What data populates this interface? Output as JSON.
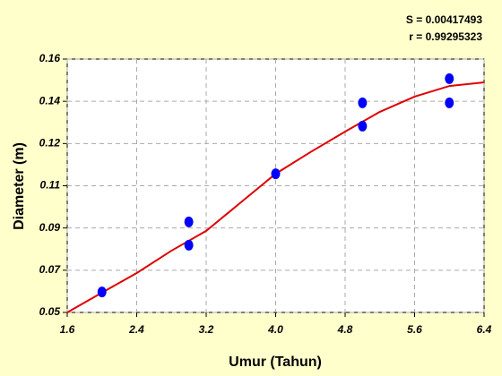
{
  "chart_data": {
    "type": "scatter",
    "stats": [
      "S = 0.00417493",
      "r = 0.99295323"
    ],
    "x_label": "Umur (Tahun)",
    "y_label": "Diameter (m)",
    "xlim": [
      1.6,
      6.4
    ],
    "xticks": [
      1.6,
      2.4,
      3.2,
      {
        "value": 4,
        "label": "4.0"
      },
      4.8,
      5.6,
      6.4
    ],
    "ylim": [
      0.05,
      0.16
    ],
    "yticks": [
      0.05,
      {
        "value": 0.06833,
        "label": "0.07"
      },
      {
        "value": 0.08667,
        "label": "0.09"
      },
      {
        "value": 0.105,
        "label": "0.11"
      },
      {
        "value": 0.12333,
        "label": "0.12"
      },
      {
        "value": 0.14167,
        "label": "0.14"
      },
      0.16
    ],
    "grid": true,
    "points": {
      "color": "#0000ff",
      "x": [
        2.0,
        3.0,
        3.0,
        4.0,
        5.0,
        5.0,
        6.0,
        6.0
      ],
      "y": [
        0.0589,
        0.0893,
        0.0792,
        0.1102,
        0.141,
        0.1309,
        0.1515,
        0.141
      ]
    },
    "fit": {
      "color": "#e00000",
      "x": [
        1.6,
        2.0,
        2.4,
        2.8,
        3.2,
        3.6,
        4.0,
        4.4,
        4.8,
        5.2,
        5.6,
        6.0,
        6.4
      ],
      "y": [
        0.05,
        0.0586,
        0.0671,
        0.0768,
        0.0854,
        0.0978,
        0.1102,
        0.1196,
        0.1285,
        0.1371,
        0.1437,
        0.1483,
        0.1499
      ]
    }
  }
}
